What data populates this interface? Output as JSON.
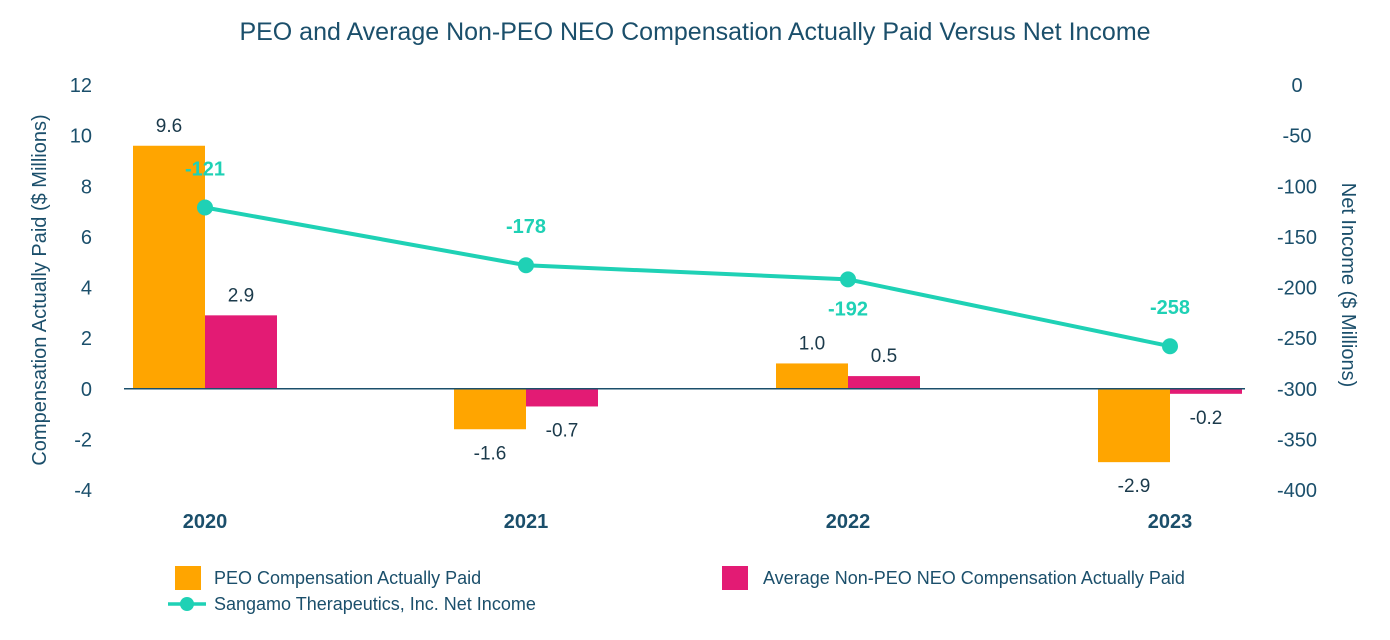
{
  "chart_data": {
    "type": "bar",
    "title": "PEO and Average Non-PEO NEO Compensation Actually Paid Versus Net Income",
    "categories": [
      "2020",
      "2021",
      "2022",
      "2023"
    ],
    "ylabel": "Compensation Actually Paid ($ Millions)",
    "y2label": "Net Income ($ Millions)",
    "ylim": [
      -4,
      12
    ],
    "yticks": [
      "12",
      "10",
      "8",
      "6",
      "4",
      "2",
      "0",
      "-2",
      "-4"
    ],
    "y2lim": [
      -400,
      0
    ],
    "y2ticks": [
      "0",
      "-50",
      "-100",
      "-150",
      "-200",
      "-250",
      "-300",
      "-350",
      "-400"
    ],
    "series": [
      {
        "name": "PEO Compensation Actually Paid",
        "kind": "bar",
        "axis": "left",
        "color": "#ffa500",
        "values": [
          9.6,
          -1.6,
          1.0,
          -2.9
        ],
        "labels": [
          "9.6",
          "-1.6",
          "1.0",
          "-2.9"
        ]
      },
      {
        "name": "Average Non-PEO NEO Compensation Actually Paid",
        "kind": "bar",
        "axis": "left",
        "color": "#e31b74",
        "values": [
          2.9,
          -0.7,
          0.5,
          -0.2
        ],
        "labels": [
          "2.9",
          "-0.7",
          "0.5",
          "-0.2"
        ]
      },
      {
        "name": "Sangamo Therapeutics, Inc. Net Income",
        "kind": "line",
        "axis": "right",
        "color": "#1fd1b5",
        "values": [
          -121,
          -178,
          -192,
          -258
        ],
        "labels": [
          "-121",
          "-178",
          "-192",
          "-258"
        ]
      }
    ],
    "legend_position": "bottom",
    "grid": false
  }
}
